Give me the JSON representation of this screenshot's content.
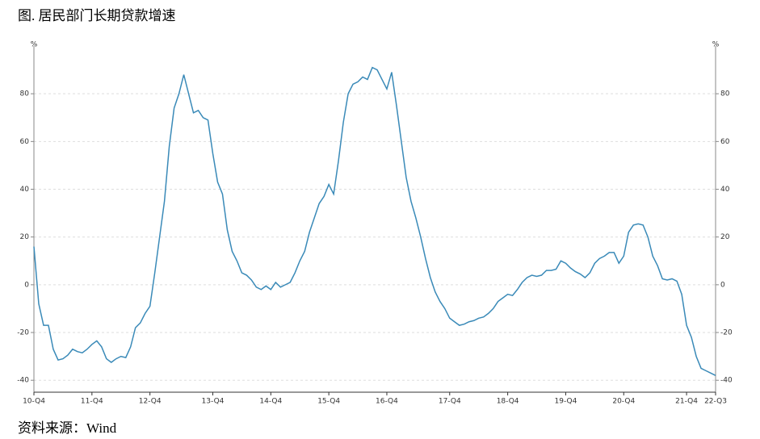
{
  "chart_data": {
    "type": "line",
    "title": "图. 居民部门长期贷款增速",
    "source": "资料来源：Wind",
    "unit": "%",
    "categories": [
      "10-Q4",
      null,
      null,
      null,
      null,
      null,
      null,
      null,
      null,
      null,
      null,
      null,
      "11-Q4",
      null,
      null,
      null,
      null,
      null,
      null,
      null,
      null,
      null,
      null,
      null,
      "12-Q4",
      null,
      null,
      null,
      null,
      null,
      null,
      null,
      null,
      null,
      null,
      null,
      null,
      "13-Q4",
      null,
      null,
      null,
      null,
      null,
      null,
      null,
      null,
      null,
      null,
      null,
      "14-Q4",
      null,
      null,
      null,
      null,
      null,
      null,
      null,
      null,
      null,
      null,
      null,
      "15-Q4",
      null,
      null,
      null,
      null,
      null,
      null,
      null,
      null,
      null,
      null,
      null,
      "16-Q4",
      null,
      null,
      null,
      null,
      null,
      null,
      null,
      null,
      null,
      null,
      null,
      null,
      "17-Q4",
      null,
      null,
      null,
      null,
      null,
      null,
      null,
      null,
      null,
      null,
      null,
      "18-Q4",
      null,
      null,
      null,
      null,
      null,
      null,
      null,
      null,
      null,
      null,
      null,
      "19-Q4",
      null,
      null,
      null,
      null,
      null,
      null,
      null,
      null,
      null,
      null,
      null,
      "20-Q4",
      null,
      null,
      null,
      null,
      null,
      null,
      null,
      null,
      null,
      null,
      null,
      null,
      "21-Q4",
      null,
      null,
      null,
      null,
      null,
      "22-Q3"
    ],
    "series": [
      {
        "color": "#3a8ab8",
        "values": [
          16,
          -8,
          -17,
          -17,
          -27,
          -31.5,
          -31,
          -29.5,
          -27,
          -28,
          -28.5,
          -27,
          -25,
          -23.5,
          -26,
          -31,
          -32.5,
          -31,
          -30,
          -30.5,
          -26,
          -18,
          -16,
          -12,
          -9,
          5,
          20,
          35,
          58,
          74,
          80,
          88,
          80,
          72,
          73,
          70,
          69,
          55,
          43,
          38,
          23,
          14,
          10,
          5,
          4,
          2,
          -1,
          -2,
          -0.5,
          -2,
          1,
          -1,
          0,
          1,
          5,
          10,
          14,
          22,
          28,
          34,
          37,
          42,
          38,
          52,
          68,
          80,
          84,
          85,
          87,
          86,
          91,
          90,
          86,
          82,
          89,
          75,
          60,
          45,
          35,
          28,
          20,
          11,
          3,
          -3,
          -7,
          -10,
          -14,
          -15.5,
          -17,
          -16.5,
          -15.5,
          -15,
          -14,
          -13.5,
          -12,
          -10,
          -7,
          -5.5,
          -4,
          -4.5,
          -2,
          1,
          3,
          4,
          3.5,
          4,
          6,
          6,
          6.5,
          10,
          9,
          7,
          5.5,
          4.5,
          3,
          5,
          9,
          11,
          12,
          13.5,
          13.5,
          9,
          12,
          22,
          25,
          25.5,
          25,
          20,
          12,
          8,
          2.5,
          2,
          2.5,
          1.5,
          -4,
          -17,
          -22,
          -30,
          -35,
          -36,
          -37,
          -38
        ]
      }
    ],
    "ylim": [
      -45,
      100
    ],
    "yticks": [
      -40,
      -20,
      0,
      20,
      40,
      60,
      80
    ],
    "grid": true
  }
}
